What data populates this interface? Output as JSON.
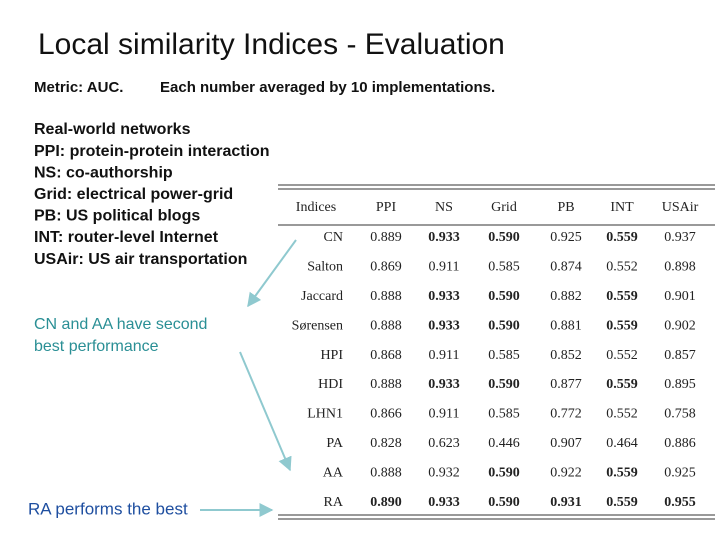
{
  "title": "Local similarity Indices - Evaluation",
  "subtitle": {
    "metric": "Metric: AUC.",
    "note": "Each number averaged by 10 implementations."
  },
  "legend_lines": [
    "Real-world networks",
    "PPI: protein-protein interaction",
    "NS: co-authorship",
    "Grid: electrical power-grid",
    "PB: US political blogs",
    "INT: router-level Internet",
    "USAir: US air transportation"
  ],
  "callout_second": [
    "CN and AA have second",
    "best performance"
  ],
  "callout_best": "RA performs the best",
  "table": {
    "header": [
      "Indices",
      "PPI",
      "NS",
      "Grid",
      "PB",
      "INT",
      "USAir"
    ],
    "rows": [
      [
        "CN",
        "0.889",
        "0.933",
        "0.590",
        "0.925",
        "0.559",
        "0.937"
      ],
      [
        "Salton",
        "0.869",
        "0.911",
        "0.585",
        "0.874",
        "0.552",
        "0.898"
      ],
      [
        "Jaccard",
        "0.888",
        "0.933",
        "0.590",
        "0.882",
        "0.559",
        "0.901"
      ],
      [
        "Sørensen",
        "0.888",
        "0.933",
        "0.590",
        "0.881",
        "0.559",
        "0.902"
      ],
      [
        "HPI",
        "0.868",
        "0.911",
        "0.585",
        "0.852",
        "0.552",
        "0.857"
      ],
      [
        "HDI",
        "0.888",
        "0.933",
        "0.590",
        "0.877",
        "0.559",
        "0.895"
      ],
      [
        "LHN1",
        "0.866",
        "0.911",
        "0.585",
        "0.772",
        "0.552",
        "0.758"
      ],
      [
        "PA",
        "0.828",
        "0.623",
        "0.446",
        "0.907",
        "0.464",
        "0.886"
      ],
      [
        "AA",
        "0.888",
        "0.932",
        "0.590",
        "0.922",
        "0.559",
        "0.925"
      ],
      [
        "RA",
        "0.890",
        "0.933",
        "0.590",
        "0.931",
        "0.559",
        "0.955"
      ]
    ]
  }
}
